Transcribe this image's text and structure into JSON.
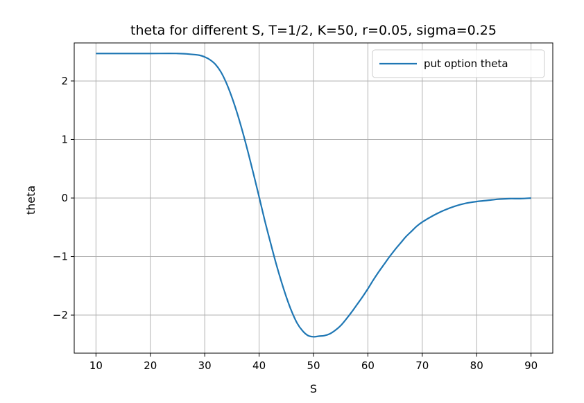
{
  "chart_data": {
    "type": "line",
    "title": "theta for different S, T=1/2, K=50, r=0.05, sigma=0.25",
    "xlabel": "S",
    "ylabel": "theta",
    "xlim": [
      6,
      94
    ],
    "ylim": [
      -2.65,
      2.65
    ],
    "xticks": [
      10,
      20,
      30,
      40,
      50,
      60,
      70,
      80,
      90
    ],
    "xtick_labels": [
      "10",
      "20",
      "30",
      "40",
      "50",
      "60",
      "70",
      "80",
      "90"
    ],
    "yticks": [
      -2,
      -1,
      0,
      1,
      2
    ],
    "ytick_labels": [
      "−2",
      "−1",
      "0",
      "1",
      "2"
    ],
    "grid": true,
    "legend_position": "upper-right",
    "series": [
      {
        "name": "put option theta",
        "color": "#1f77b4",
        "x": [
          10,
          15,
          20,
          25,
          27,
          29,
          30,
          31,
          32,
          33,
          34,
          35,
          36,
          37,
          38,
          39,
          40,
          41,
          42,
          43,
          44,
          45,
          46,
          47,
          48,
          49,
          50,
          51,
          52,
          53,
          54,
          55,
          56,
          57,
          58,
          59,
          60,
          61,
          62,
          63,
          64,
          65,
          66,
          67,
          68,
          69,
          70,
          72,
          74,
          76,
          78,
          80,
          82,
          84,
          86,
          88,
          90
        ],
        "y": [
          2.47,
          2.47,
          2.47,
          2.47,
          2.46,
          2.44,
          2.41,
          2.36,
          2.28,
          2.15,
          1.96,
          1.72,
          1.44,
          1.12,
          0.77,
          0.4,
          0.02,
          -0.37,
          -0.73,
          -1.08,
          -1.4,
          -1.69,
          -1.94,
          -2.14,
          -2.27,
          -2.35,
          -2.37,
          -2.36,
          -2.35,
          -2.32,
          -2.26,
          -2.18,
          -2.07,
          -1.95,
          -1.82,
          -1.69,
          -1.55,
          -1.4,
          -1.26,
          -1.13,
          -1.0,
          -0.88,
          -0.77,
          -0.66,
          -0.57,
          -0.48,
          -0.41,
          -0.3,
          -0.21,
          -0.14,
          -0.09,
          -0.06,
          -0.04,
          -0.02,
          -0.01,
          -0.01,
          0.0
        ]
      }
    ]
  }
}
